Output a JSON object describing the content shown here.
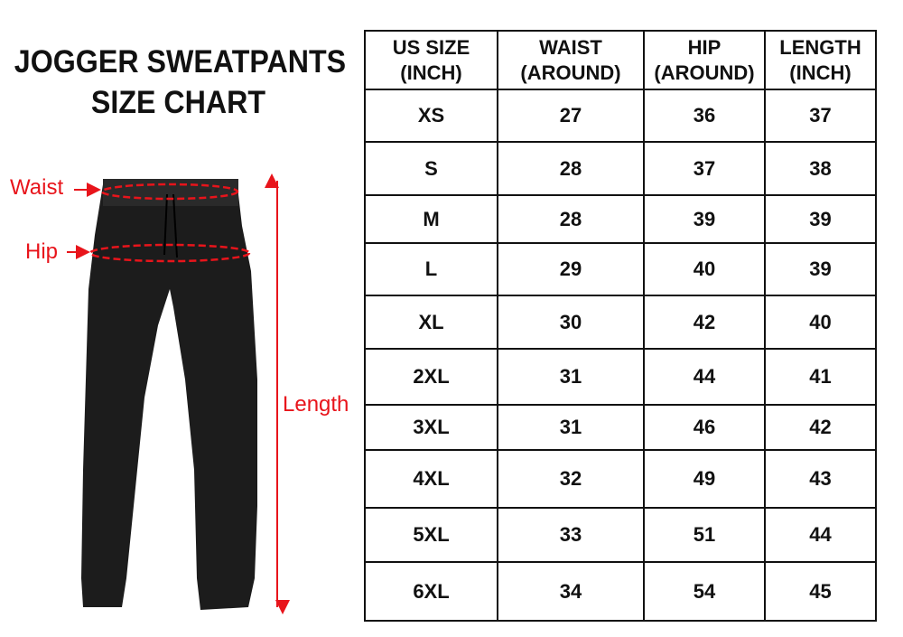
{
  "title_line1": "JOGGER SWEATPANTS",
  "title_line2": "SIZE CHART",
  "labels": {
    "waist": "Waist",
    "hip": "Hip",
    "length": "Length"
  },
  "colors": {
    "annotation": "#e8141b",
    "garment": "#1a1a1a"
  },
  "table": {
    "headers": [
      {
        "line1": "US SIZE",
        "line2": "(INCH)"
      },
      {
        "line1": "WAIST",
        "line2": "(AROUND)"
      },
      {
        "line1": "HIP",
        "line2": "(AROUND)"
      },
      {
        "line1": "LENGTH",
        "line2": "(INCH)"
      }
    ],
    "rows": [
      [
        "XS",
        "27",
        "36",
        "37"
      ],
      [
        "S",
        "28",
        "37",
        "38"
      ],
      [
        "M",
        "28",
        "39",
        "39"
      ],
      [
        "L",
        "29",
        "40",
        "39"
      ],
      [
        "XL",
        "30",
        "42",
        "40"
      ],
      [
        "2XL",
        "31",
        "44",
        "41"
      ],
      [
        "3XL",
        "31",
        "46",
        "42"
      ],
      [
        "4XL",
        "32",
        "49",
        "43"
      ],
      [
        "5XL",
        "33",
        "51",
        "44"
      ],
      [
        "6XL",
        "34",
        "54",
        "45"
      ]
    ]
  }
}
